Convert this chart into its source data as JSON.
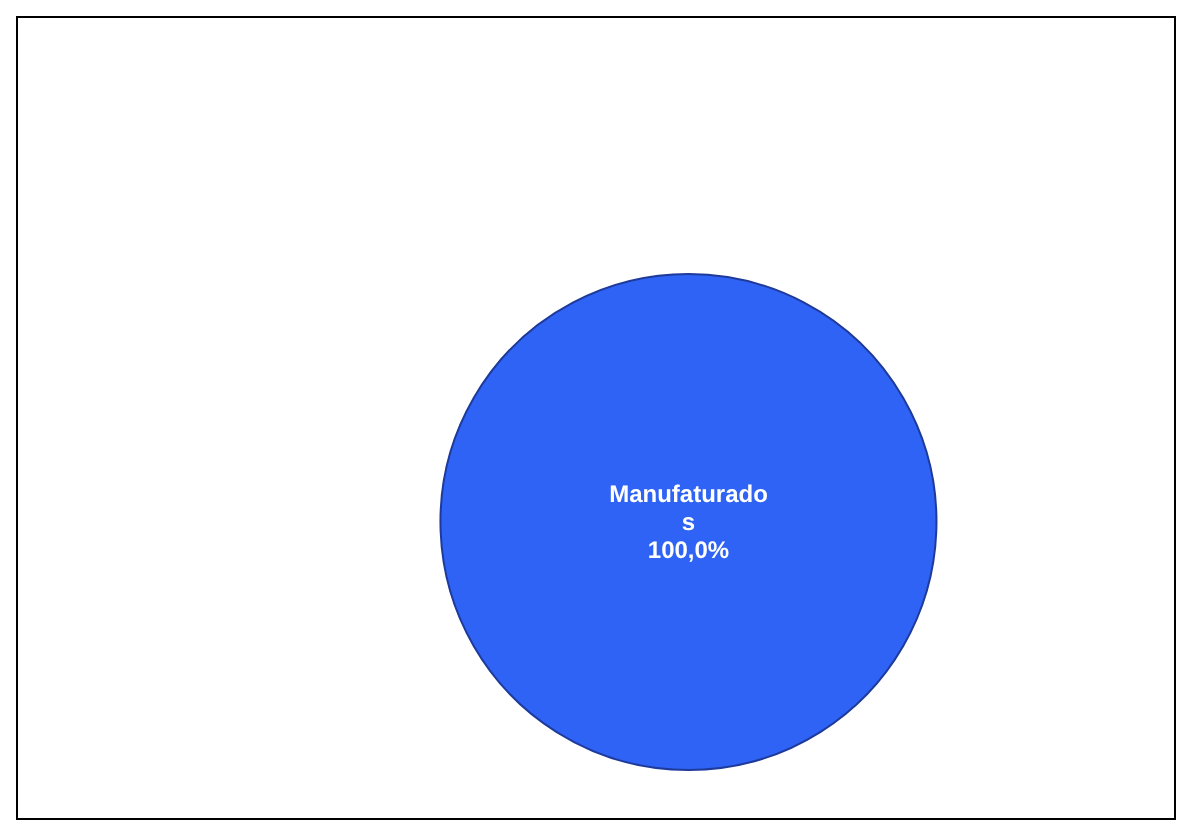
{
  "chart_data": {
    "type": "pie",
    "categories": [
      "Manufaturados"
    ],
    "values": [
      100
    ],
    "colors": [
      "#2f63f5"
    ],
    "value_labels": [
      "100,0%"
    ],
    "legend": false
  }
}
